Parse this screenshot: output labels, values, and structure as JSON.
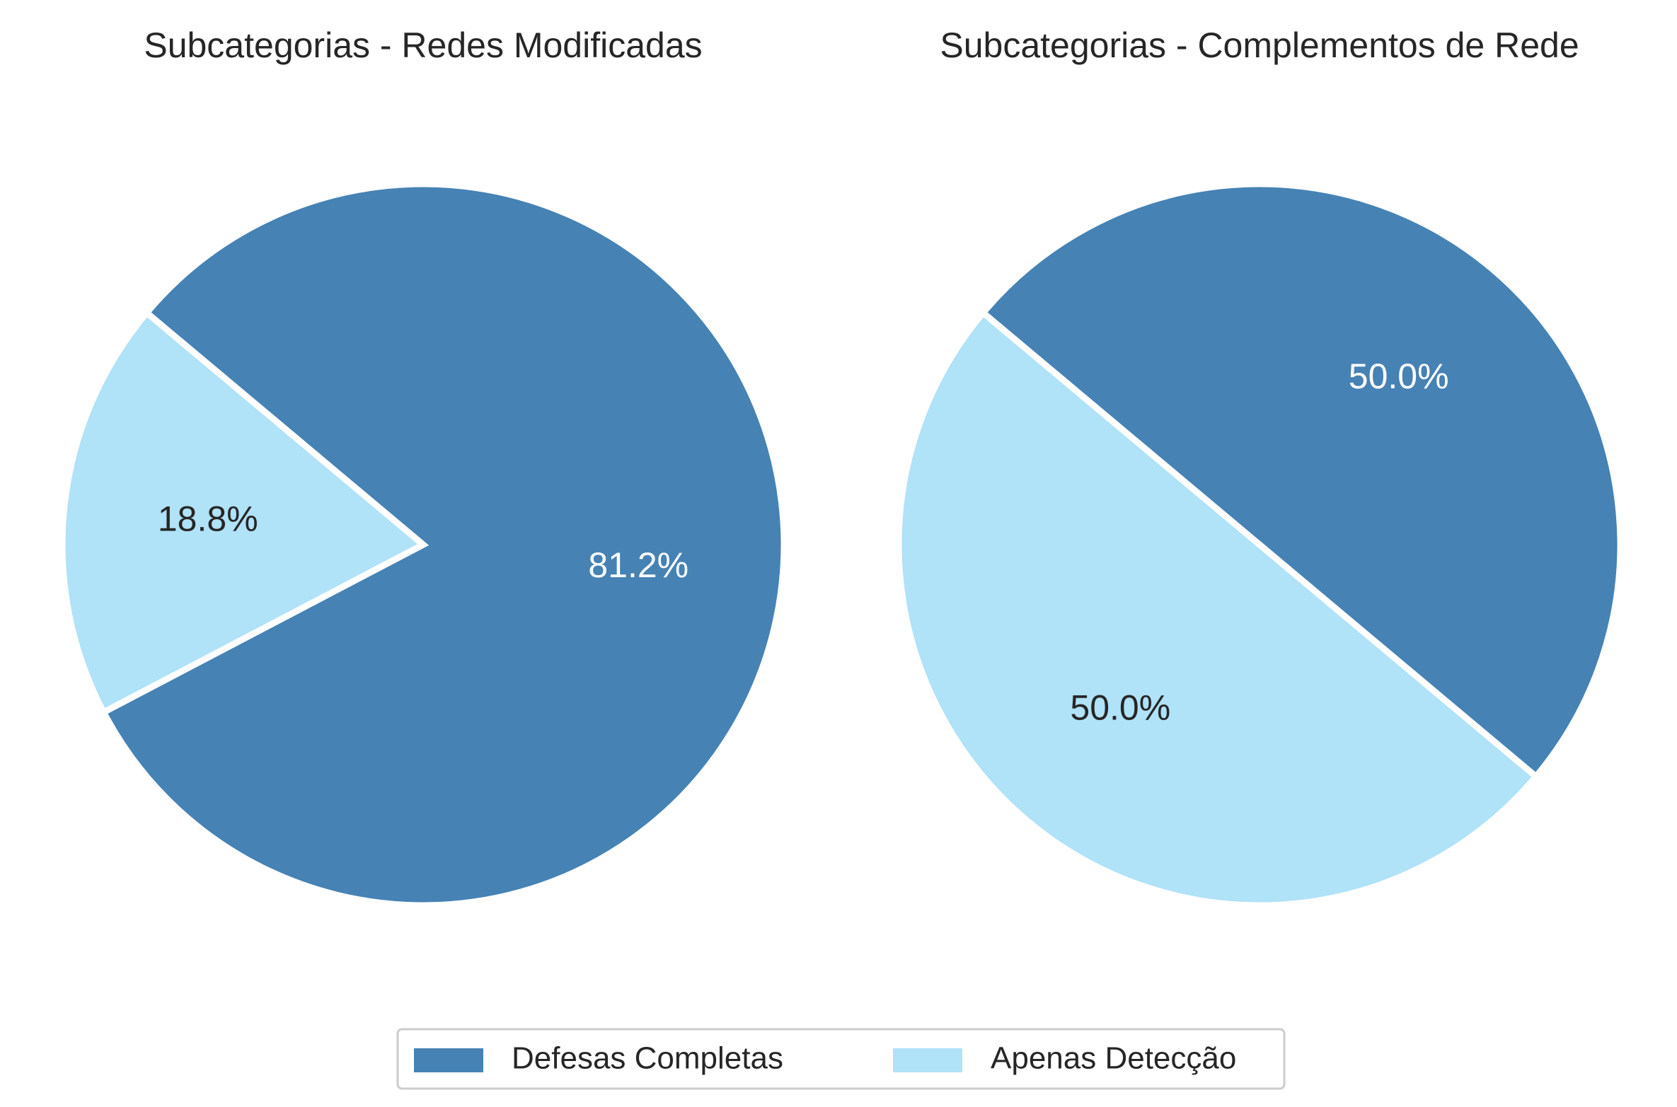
{
  "chart_data": [
    {
      "type": "pie",
      "title": "Subcategorias - Redes Modificadas",
      "labels": [
        "Defesas Completas",
        "Apenas Detecção"
      ],
      "values": [
        81.2,
        18.8
      ],
      "value_labels": [
        "81.2%",
        "18.8%"
      ],
      "colors": [
        "#4682b4",
        "#b0e2f8"
      ],
      "label_colors": [
        "#ffffff",
        "#262626"
      ]
    },
    {
      "type": "pie",
      "title": "Subcategorias - Complementos de Rede",
      "labels": [
        "Defesas Completas",
        "Apenas Detecção"
      ],
      "values": [
        50.0,
        50.0
      ],
      "value_labels": [
        "50.0%",
        "50.0%"
      ],
      "colors": [
        "#4682b4",
        "#b0e2f8"
      ],
      "label_colors": [
        "#ffffff",
        "#262626"
      ]
    }
  ],
  "legend": {
    "placement": "bottom-center",
    "items": [
      {
        "label": "Defesas Completas",
        "color": "#4682b4"
      },
      {
        "label": "Apenas Detecção",
        "color": "#b0e2f8"
      }
    ]
  }
}
